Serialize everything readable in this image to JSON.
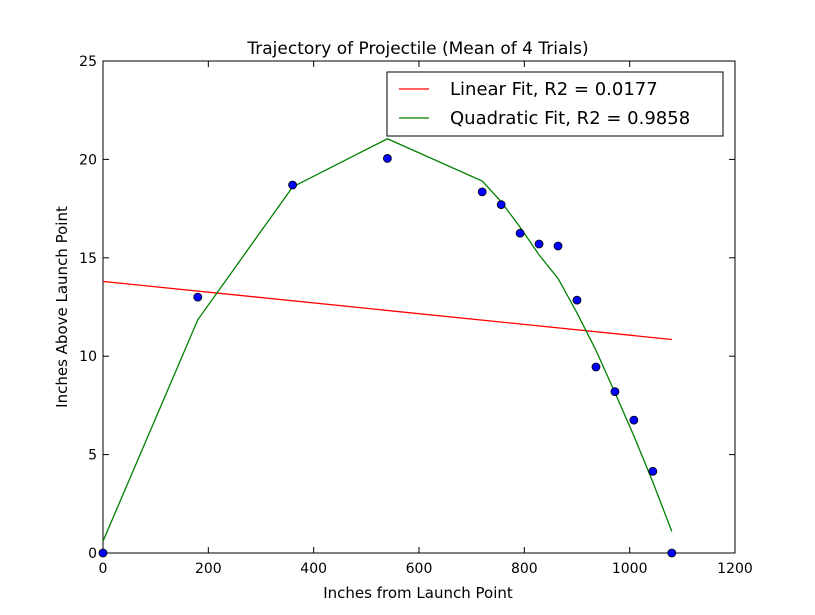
{
  "chart_data": {
    "type": "scatter",
    "title": "Trajectory of Projectile (Mean of 4 Trials)",
    "xlabel": "Inches from Launch Point",
    "ylabel": "Inches Above Launch Point",
    "xlim": [
      0,
      1200
    ],
    "ylim": [
      0,
      25
    ],
    "xticks": [
      0,
      200,
      400,
      600,
      800,
      1000,
      1200
    ],
    "yticks": [
      0,
      5,
      10,
      15,
      20,
      25
    ],
    "grid": false,
    "legend_position": "top-right",
    "series": [
      {
        "kind": "points",
        "color": "#0000ff",
        "x": [
          0,
          180,
          360,
          540,
          720,
          756,
          792,
          828,
          864,
          900,
          936,
          972,
          1008,
          1044,
          1080
        ],
        "y": [
          0,
          13.0,
          18.7,
          20.05,
          18.35,
          17.7,
          16.25,
          15.7,
          15.6,
          12.85,
          9.45,
          8.2,
          6.75,
          4.15,
          0
        ]
      },
      {
        "name": "Linear Fit, R2 = 0.0177",
        "kind": "line",
        "color": "#ff0000",
        "x": [
          0,
          1080
        ],
        "y": [
          13.8,
          10.85
        ]
      },
      {
        "name": "Quadratic Fit, R2 = 0.9858",
        "kind": "line",
        "color": "#008000",
        "x": [
          0,
          180,
          360,
          540,
          720,
          756,
          792,
          828,
          864,
          900,
          936,
          972,
          1008,
          1044,
          1080
        ],
        "y": [
          0.6,
          11.85,
          18.6,
          21.05,
          18.9,
          17.85,
          16.55,
          15.15,
          13.95,
          12.2,
          10.3,
          8.15,
          5.95,
          3.6,
          1.1
        ]
      }
    ]
  }
}
